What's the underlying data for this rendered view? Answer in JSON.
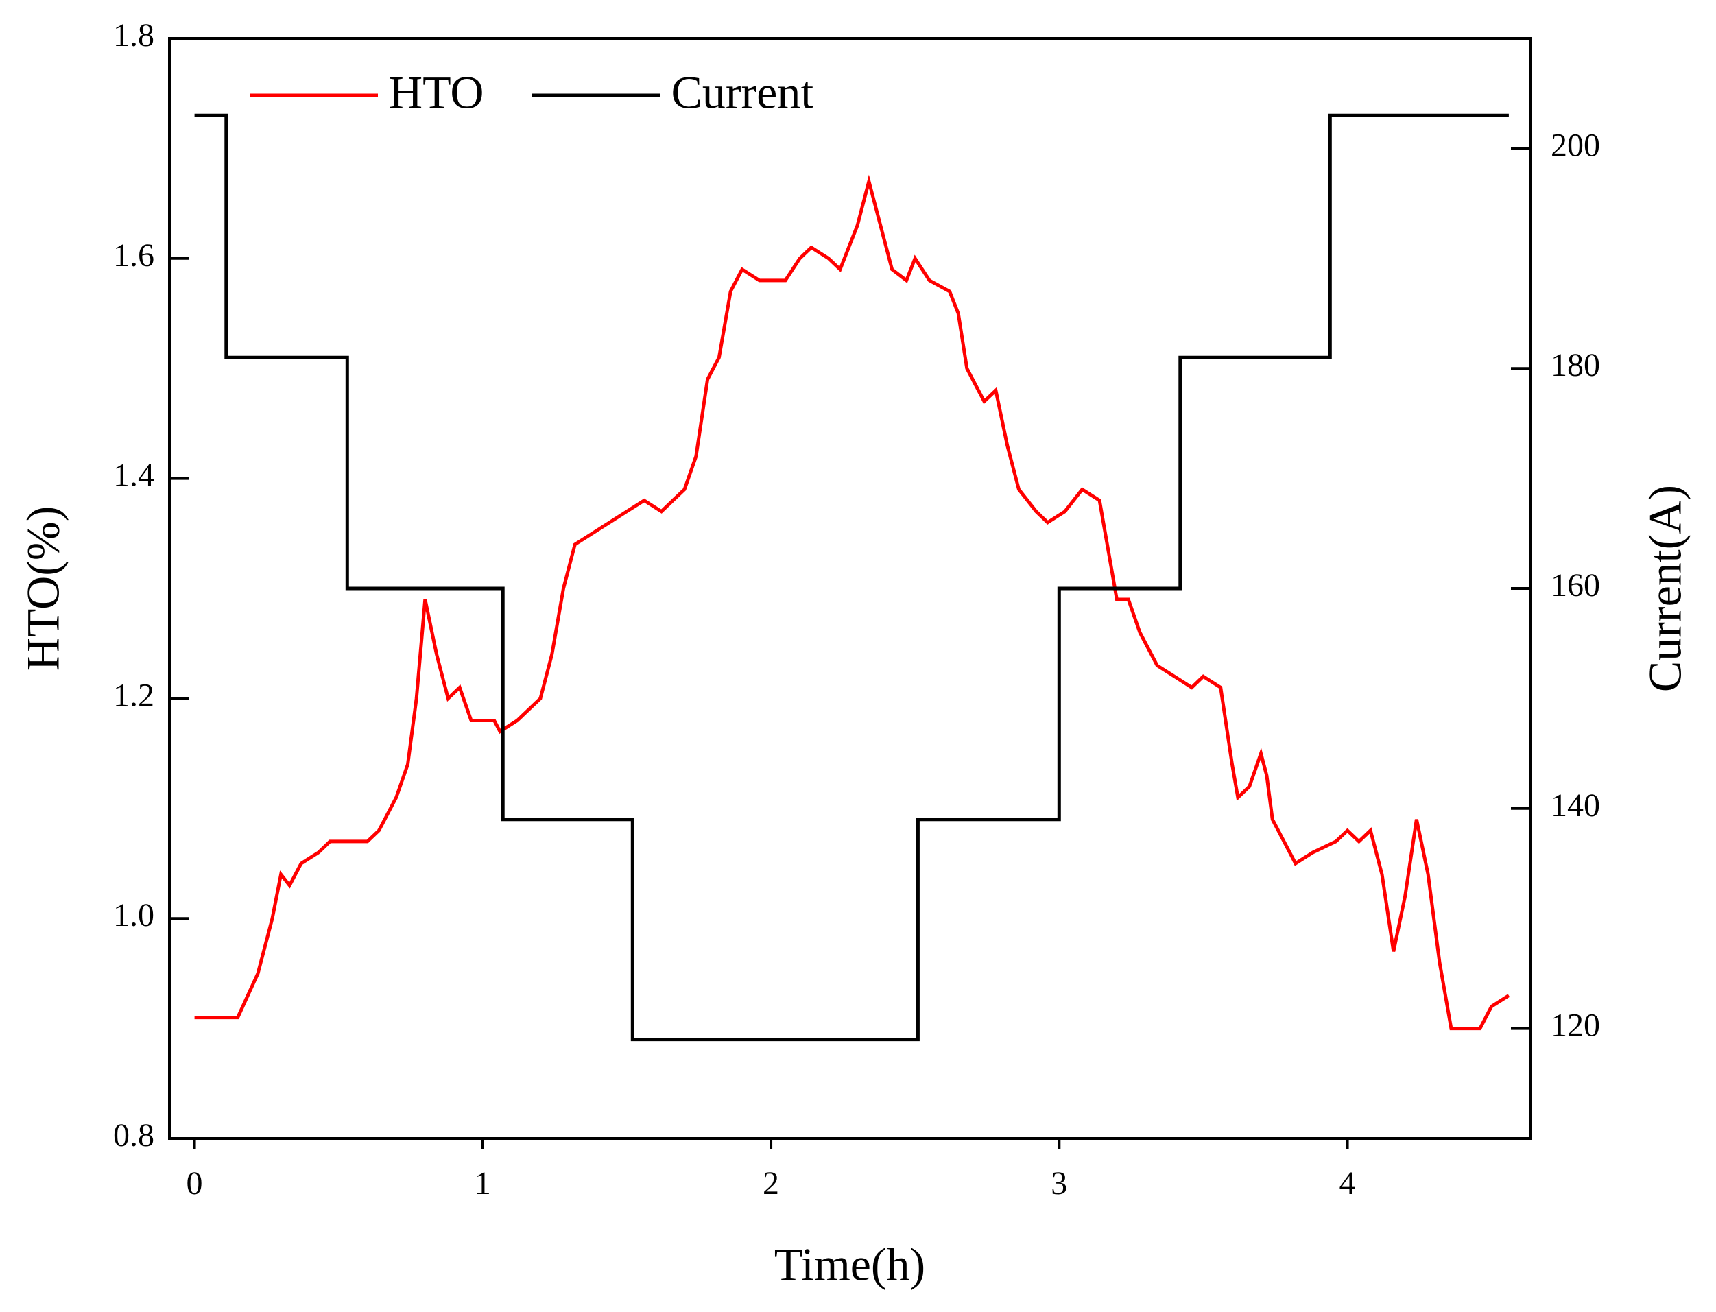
{
  "chart_data": {
    "type": "line",
    "xlabel": "Time(h)",
    "ylabel": "HTO(%)",
    "y2label": "Current(A)",
    "xlim": [
      -0.087,
      4.634
    ],
    "xticks": [
      0,
      1,
      2,
      3,
      4
    ],
    "ylim": [
      0.8,
      1.8
    ],
    "yticks": [
      0.8,
      {
        "value": 1,
        "label": "1.0"
      },
      1.2,
      1.4,
      1.6,
      1.8
    ],
    "y2lim": [
      110,
      210
    ],
    "y2ticks": [
      120,
      140,
      160,
      180,
      200
    ],
    "legend": "upper left",
    "series": [
      {
        "name": "HTO",
        "color": "#ff0000",
        "x": [
          0,
          0.15,
          0.22,
          0.27,
          0.3,
          0.33,
          0.37,
          0.43,
          0.47,
          0.6,
          0.64,
          0.7,
          0.74,
          0.77,
          0.8,
          0.84,
          0.88,
          0.92,
          0.96,
          1.04,
          1.06,
          1.12,
          1.2,
          1.24,
          1.28,
          1.32,
          1.38,
          1.44,
          1.5,
          1.56,
          1.62,
          1.7,
          1.74,
          1.78,
          1.82,
          1.86,
          1.9,
          1.96,
          2.05,
          2.1,
          2.14,
          2.2,
          2.24,
          2.3,
          2.34,
          2.38,
          2.42,
          2.47,
          2.5,
          2.55,
          2.62,
          2.65,
          2.68,
          2.74,
          2.78,
          2.82,
          2.86,
          2.92,
          2.96,
          3.02,
          3.08,
          3.14,
          3.18,
          3.2,
          3.24,
          3.28,
          3.34,
          3.4,
          3.46,
          3.5,
          3.56,
          3.6,
          3.62,
          3.66,
          3.7,
          3.72,
          3.74,
          3.78,
          3.82,
          3.88,
          3.96,
          4.0,
          4.04,
          4.08,
          4.12,
          4.16,
          4.2,
          4.24,
          4.28,
          4.32,
          4.36,
          4.4,
          4.46,
          4.5,
          4.56
        ],
        "values": [
          0.91,
          0.91,
          0.95,
          1.0,
          1.04,
          1.03,
          1.05,
          1.06,
          1.07,
          1.07,
          1.08,
          1.11,
          1.14,
          1.2,
          1.29,
          1.24,
          1.2,
          1.21,
          1.18,
          1.18,
          1.17,
          1.18,
          1.2,
          1.24,
          1.3,
          1.34,
          1.35,
          1.36,
          1.37,
          1.38,
          1.37,
          1.39,
          1.42,
          1.49,
          1.51,
          1.57,
          1.59,
          1.58,
          1.58,
          1.6,
          1.61,
          1.6,
          1.59,
          1.63,
          1.67,
          1.63,
          1.59,
          1.58,
          1.6,
          1.58,
          1.57,
          1.55,
          1.5,
          1.47,
          1.48,
          1.43,
          1.39,
          1.37,
          1.36,
          1.37,
          1.39,
          1.38,
          1.32,
          1.29,
          1.29,
          1.26,
          1.23,
          1.22,
          1.21,
          1.22,
          1.21,
          1.14,
          1.11,
          1.12,
          1.15,
          1.13,
          1.09,
          1.07,
          1.05,
          1.06,
          1.07,
          1.08,
          1.07,
          1.08,
          1.04,
          0.97,
          1.02,
          1.09,
          1.04,
          0.96,
          0.9,
          0.9,
          0.9,
          0.92,
          0.93
        ]
      },
      {
        "name": "Current",
        "color": "#000000",
        "axis": "y2",
        "x": [
          0,
          0.11,
          0.11,
          0.53,
          0.53,
          1.07,
          1.07,
          1.52,
          1.52,
          2.51,
          2.51,
          3.0,
          3.0,
          3.42,
          3.42,
          3.94,
          3.94,
          4.56
        ],
        "values": [
          203,
          203,
          181,
          181,
          160,
          160,
          139,
          139,
          119,
          119,
          139,
          139,
          160,
          160,
          181,
          181,
          203,
          203
        ]
      }
    ]
  }
}
